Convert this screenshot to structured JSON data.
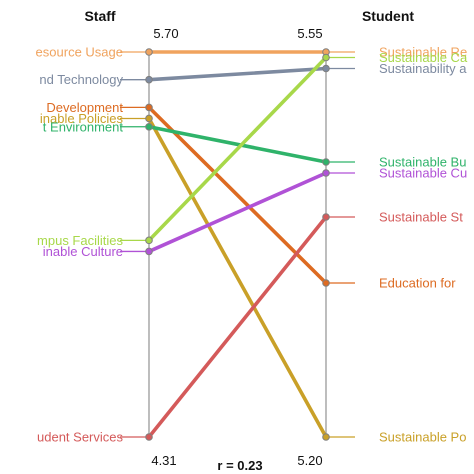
{
  "chart_data": {
    "type": "slope",
    "axes": {
      "left": {
        "header": "Staff",
        "top_value_label": "5.70",
        "bottom_value_label": "4.31"
      },
      "right": {
        "header": "Student",
        "top_value_label": "5.55",
        "bottom_value_label": "5.20"
      }
    },
    "correlation_label": "r = 0.23",
    "series": [
      {
        "color": "#f0a35e",
        "left_label": "esource Usage",
        "right_label": "Sustainable Re",
        "left_rank": 1,
        "right_rank": 1,
        "left_value": 5.7,
        "right_value": 5.55
      },
      {
        "color": "#7d8aa0",
        "left_label": "nd Technology",
        "right_label": "Sustainability a",
        "left_rank": 2,
        "right_rank": 3,
        "left_value": 5.6,
        "right_value": 5.535
      },
      {
        "color": "#dd6b22",
        "left_label": "Development",
        "right_label": "Education for",
        "left_rank": 3,
        "right_rank": 9,
        "left_value": 5.5,
        "right_value": 5.34
      },
      {
        "color": "#c9a028",
        "left_label": "inable Policies",
        "right_label": "Sustainable Po",
        "left_rank": 4,
        "right_rank": 10,
        "left_value": 5.46,
        "right_value": 5.2
      },
      {
        "color": "#2fb36a",
        "left_label": "t Environment",
        "right_label": "Sustainable Bu",
        "left_rank": 5,
        "right_rank": 5,
        "left_value": 5.43,
        "right_value": 5.45
      },
      {
        "color": "#a8d84a",
        "left_label": "mpus Facilities",
        "right_label": "Sustainable Ca",
        "left_rank": 6,
        "right_rank": 2,
        "left_value": 5.02,
        "right_value": 5.545
      },
      {
        "color": "#b052d6",
        "left_label": "inable Culture",
        "right_label": "Sustainable Cu",
        "left_rank": 7,
        "right_rank": 6,
        "left_value": 4.98,
        "right_value": 5.44
      },
      {
        "color": "#d45a5a",
        "left_label": "udent Services",
        "right_label": "Sustainable St",
        "left_rank": 8,
        "right_rank": 7,
        "left_value": 4.31,
        "right_value": 5.4
      }
    ]
  }
}
